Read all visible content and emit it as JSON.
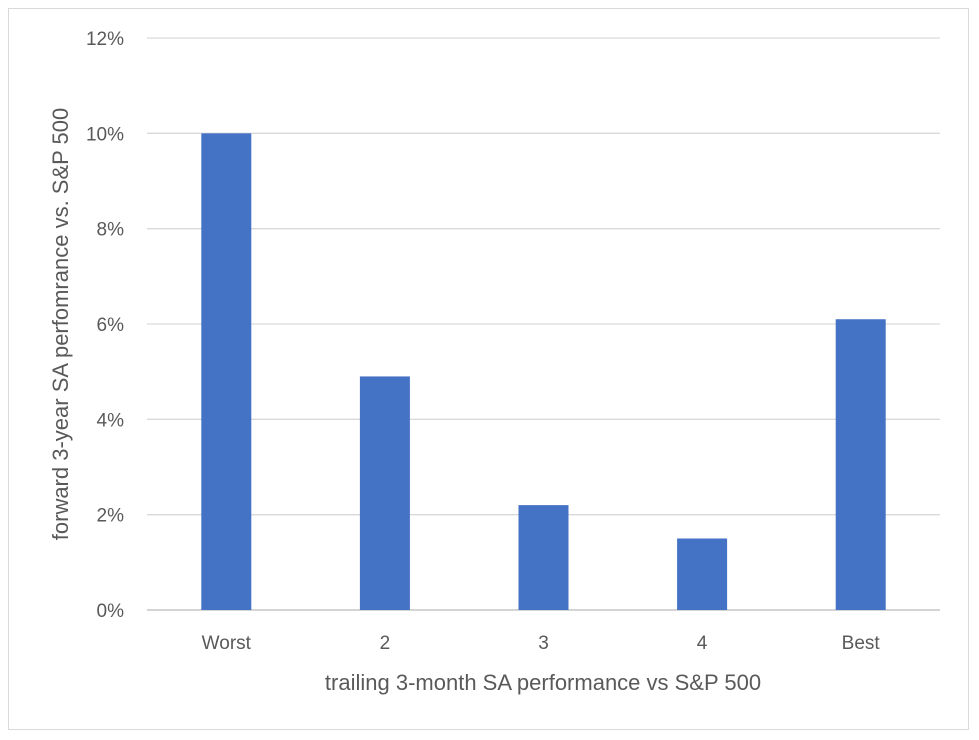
{
  "chart_data": {
    "type": "bar",
    "categories": [
      "Worst",
      "2",
      "3",
      "4",
      "Best"
    ],
    "values": [
      10.0,
      4.9,
      2.2,
      1.5,
      6.1
    ],
    "title": "",
    "xlabel": "trailing 3-month SA performance vs S&P 500",
    "ylabel": "forward 3-year SA perfomrance vs. S&P 500",
    "ylim": [
      0,
      12
    ],
    "yticks": [
      0,
      2,
      4,
      6,
      8,
      10,
      12
    ],
    "ytick_labels": [
      "0%",
      "2%",
      "4%",
      "6%",
      "8%",
      "10%",
      "12%"
    ],
    "grid": true,
    "legend": "none",
    "bar_color": "#4472C4",
    "grid_color": "#d9d9d9"
  }
}
